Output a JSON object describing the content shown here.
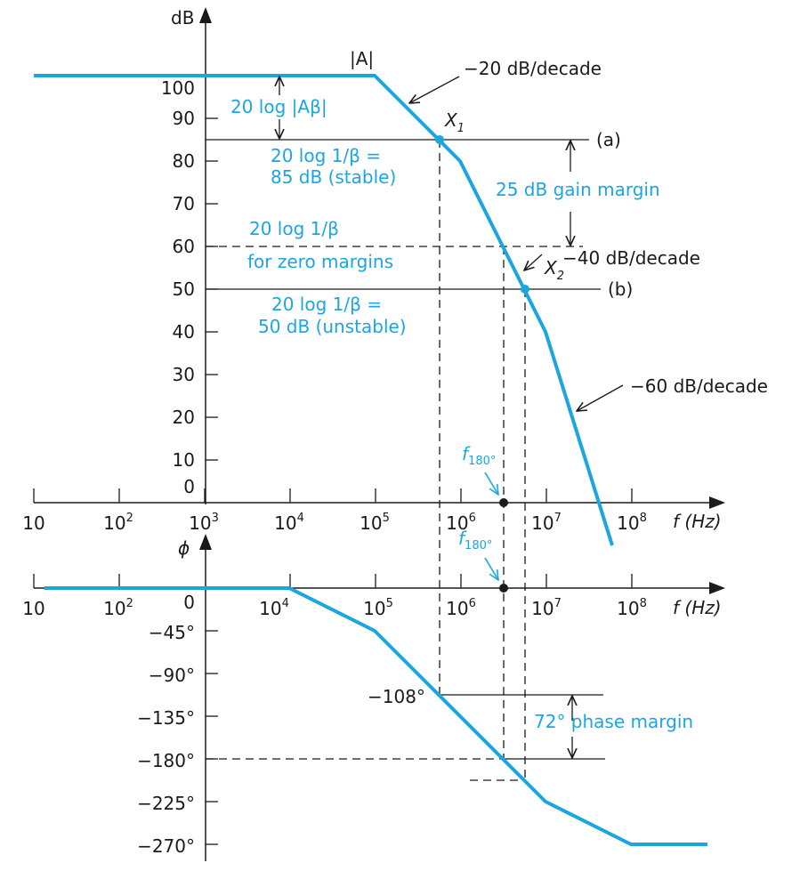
{
  "colors": {
    "curve": "#1ba6e0",
    "ink": "#1a1a1a"
  },
  "labels": {
    "db_axis": "dB",
    "phi_axis": "ϕ",
    "freq_axis": "f (Hz)",
    "freq_axis_2": "f (Hz)",
    "zero_phase": "0",
    "abs_A": "|A|",
    "slope_20": "−20 dB/decade",
    "slope_40": "−40 dB/decade",
    "slope_60": "−60 dB/decade",
    "x1": "X",
    "x1_sub": "1",
    "x2": "X",
    "x2_sub": "2",
    "line_a": "(a)",
    "line_b": "(b)",
    "loop_gain": "20 log |Aβ|",
    "beta85_l1": "20 log 1/β =",
    "beta85_l2": "85 dB (stable)",
    "beta60_l1": "20 log 1/β",
    "beta60_l2": "for zero margins",
    "beta50_l1": "20 log 1/β =",
    "beta50_l2": "50 dB (unstable)",
    "gain_margin": "25 dB gain margin",
    "phase_margin": "72° phase margin",
    "f180": "f",
    "f180_sub": "180°",
    "f180_b": "f",
    "f180_b_sub": "180°",
    "ph_108": "−108°"
  },
  "chart_data": [
    {
      "type": "line",
      "title": "",
      "xlabel": "f (Hz)",
      "ylabel": "dB",
      "x_scale": "log",
      "x_ticks": [
        10,
        100,
        1000,
        10000,
        100000,
        1000000,
        10000000,
        100000000
      ],
      "x_tick_labels": [
        "10",
        "10^2",
        "10^3",
        "10^4",
        "10^5",
        "10^6",
        "10^7",
        "10^8"
      ],
      "y_ticks": [
        0,
        10,
        20,
        30,
        40,
        50,
        60,
        70,
        80,
        90,
        100
      ],
      "y_tick_labels": [
        "0",
        "10",
        "20",
        "30",
        "40",
        "50",
        "60",
        "70",
        "80",
        "90",
        "100"
      ],
      "ylim": [
        0,
        110
      ],
      "series": [
        {
          "x": [
            10,
            100000,
            1000000,
            10000000,
            60000000
          ],
          "y": [
            100,
            100,
            80,
            40,
            -10
          ]
        }
      ],
      "reference_lines_db": [
        85,
        60,
        50
      ],
      "points": [
        {
          "label": "X1",
          "f": 560000,
          "db": 85
        },
        {
          "label": "X2",
          "f": 5600000,
          "db": 50
        }
      ],
      "f180": 3200000
    },
    {
      "type": "line",
      "title": "",
      "xlabel": "f (Hz)",
      "ylabel": "ϕ",
      "x_scale": "log",
      "x_ticks": [
        10,
        100,
        10000,
        100000,
        1000000,
        10000000,
        100000000
      ],
      "x_tick_labels": [
        "10",
        "10^2",
        "10^4",
        "10^5",
        "10^6",
        "10^7",
        "10^8"
      ],
      "y_ticks": [
        -45,
        -90,
        -135,
        -180,
        -225,
        -270
      ],
      "y_tick_labels": [
        "−45°",
        "−90°",
        "−135°",
        "−180°",
        "−225°",
        "−270°"
      ],
      "ylim": [
        -270,
        0
      ],
      "series": [
        {
          "x": [
            12,
            10000,
            100000,
            10000000,
            100000000,
            1000000000
          ],
          "y": [
            0,
            0,
            -45,
            -225,
            -270,
            -270
          ]
        }
      ],
      "reference_lines_deg": [
        -108,
        -180
      ],
      "phase_margin_deg": 72
    }
  ]
}
